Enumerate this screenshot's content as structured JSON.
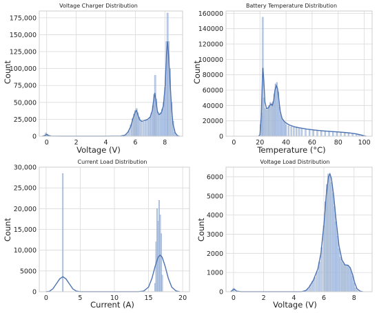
{
  "colors": {
    "bar": "#a8bfe0",
    "line": "#4c72b0"
  },
  "chart_data": [
    {
      "type": "histogram",
      "title": "Voltage Charger Distribution",
      "xlabel": "Voltage (V)",
      "ylabel": "Count",
      "xlim": [
        -0.5,
        9.2
      ],
      "ylim": [
        0,
        185000
      ],
      "xticks": [
        0,
        2,
        4,
        6,
        8
      ],
      "xtick_labels": [
        "0",
        "2",
        "4",
        "6",
        "8"
      ],
      "yticks": [
        0,
        25000,
        50000,
        75000,
        100000,
        125000,
        150000,
        175000
      ],
      "ytick_labels": [
        "0",
        "25,000",
        "50,000",
        "75,000",
        "100,000",
        "125,000",
        "150,000",
        "175,000"
      ],
      "bars": [
        [
          -0.05,
          5000
        ],
        [
          0.05,
          3000
        ],
        [
          0.15,
          1200
        ],
        [
          0.3,
          500
        ],
        [
          0.6,
          300
        ],
        [
          1.0,
          250
        ],
        [
          1.5,
          200
        ],
        [
          2.0,
          150
        ],
        [
          5.4,
          3000
        ],
        [
          5.55,
          8000
        ],
        [
          5.7,
          17000
        ],
        [
          5.82,
          26000
        ],
        [
          5.92,
          33000
        ],
        [
          6.0,
          38000
        ],
        [
          6.08,
          41000
        ],
        [
          6.16,
          35000
        ],
        [
          6.26,
          28000
        ],
        [
          6.4,
          22000
        ],
        [
          6.55,
          21000
        ],
        [
          6.7,
          23000
        ],
        [
          6.85,
          24000
        ],
        [
          6.98,
          28000
        ],
        [
          7.1,
          34000
        ],
        [
          7.2,
          45000
        ],
        [
          7.28,
          62000
        ],
        [
          7.34,
          90000
        ],
        [
          7.42,
          55000
        ],
        [
          7.52,
          36000
        ],
        [
          7.62,
          33000
        ],
        [
          7.72,
          35000
        ],
        [
          7.82,
          40000
        ],
        [
          7.92,
          50000
        ],
        [
          8.02,
          72000
        ],
        [
          8.12,
          140000
        ],
        [
          8.18,
          182000
        ],
        [
          8.25,
          140000
        ],
        [
          8.35,
          100000
        ],
        [
          8.45,
          50000
        ],
        [
          8.55,
          22000
        ],
        [
          8.65,
          6000
        ],
        [
          8.75,
          1500
        ]
      ],
      "bar_width": 0.1,
      "kde": [
        [
          -0.3,
          0
        ],
        [
          -0.1,
          1200
        ],
        [
          0.0,
          2800
        ],
        [
          0.1,
          1200
        ],
        [
          0.3,
          200
        ],
        [
          1.0,
          100
        ],
        [
          2.0,
          100
        ],
        [
          3.0,
          50
        ],
        [
          4.0,
          100
        ],
        [
          5.0,
          300
        ],
        [
          5.3,
          1500
        ],
        [
          5.5,
          6000
        ],
        [
          5.7,
          15000
        ],
        [
          5.85,
          27000
        ],
        [
          6.0,
          36000
        ],
        [
          6.08,
          38000
        ],
        [
          6.2,
          30000
        ],
        [
          6.3,
          24000
        ],
        [
          6.45,
          22000
        ],
        [
          6.6,
          23000
        ],
        [
          6.8,
          24500
        ],
        [
          7.0,
          28000
        ],
        [
          7.15,
          38000
        ],
        [
          7.25,
          55000
        ],
        [
          7.32,
          64000
        ],
        [
          7.4,
          52000
        ],
        [
          7.5,
          36000
        ],
        [
          7.6,
          32000
        ],
        [
          7.75,
          34000
        ],
        [
          7.9,
          45000
        ],
        [
          8.02,
          75000
        ],
        [
          8.1,
          118000
        ],
        [
          8.18,
          140000
        ],
        [
          8.25,
          120000
        ],
        [
          8.35,
          80000
        ],
        [
          8.45,
          42000
        ],
        [
          8.55,
          18000
        ],
        [
          8.7,
          5000
        ],
        [
          8.85,
          800
        ],
        [
          9.0,
          0
        ]
      ]
    },
    {
      "type": "histogram",
      "title": "Battery Temperature Distribution",
      "xlabel": "Temperature (°C)",
      "ylabel": "Count",
      "xlim": [
        -6,
        106
      ],
      "ylim": [
        0,
        163000
      ],
      "xticks": [
        0,
        20,
        40,
        60,
        80,
        100
      ],
      "xtick_labels": [
        "0",
        "20",
        "40",
        "60",
        "80",
        "100"
      ],
      "yticks": [
        0,
        20000,
        40000,
        60000,
        80000,
        100000,
        120000,
        140000,
        160000
      ],
      "ytick_labels": [
        "0",
        "20000",
        "40000",
        "60000",
        "80000",
        "100000",
        "120000",
        "140000",
        "160000"
      ],
      "bars": [
        [
          20.5,
          15000
        ],
        [
          21.5,
          30000
        ],
        [
          22.2,
          155000
        ],
        [
          23,
          50000
        ],
        [
          24,
          36000
        ],
        [
          25,
          34000
        ],
        [
          26,
          36000
        ],
        [
          27,
          40000
        ],
        [
          28,
          44000
        ],
        [
          29,
          42000
        ],
        [
          30,
          45000
        ],
        [
          31,
          55000
        ],
        [
          32,
          68000
        ],
        [
          33,
          70000
        ],
        [
          34,
          58000
        ],
        [
          35,
          38000
        ],
        [
          36,
          27000
        ],
        [
          37,
          22000
        ],
        [
          38,
          19000
        ],
        [
          39,
          17000
        ],
        [
          40,
          15000
        ],
        [
          42,
          13500
        ],
        [
          44,
          12500
        ],
        [
          46,
          11500
        ],
        [
          48,
          11000
        ],
        [
          50,
          10500
        ],
        [
          52,
          10000
        ],
        [
          55,
          9500
        ],
        [
          58,
          9000
        ],
        [
          61,
          8500
        ],
        [
          64,
          8000
        ],
        [
          67,
          7500
        ],
        [
          70,
          7000
        ],
        [
          73,
          6500
        ],
        [
          76,
          6000
        ],
        [
          79,
          5500
        ],
        [
          82,
          5000
        ],
        [
          85,
          4600
        ],
        [
          88,
          4000
        ],
        [
          91,
          3500
        ],
        [
          94,
          2800
        ],
        [
          96,
          2000
        ],
        [
          98,
          1000
        ]
      ],
      "bar_width": 1,
      "kde": [
        [
          19,
          0
        ],
        [
          20,
          2000
        ],
        [
          21,
          25000
        ],
        [
          21.8,
          70000
        ],
        [
          22.3,
          89000
        ],
        [
          23,
          72000
        ],
        [
          23.8,
          45000
        ],
        [
          25,
          36000
        ],
        [
          26.5,
          37000
        ],
        [
          27.5,
          40000
        ],
        [
          28.5,
          42000
        ],
        [
          29.5,
          40000
        ],
        [
          30.5,
          46000
        ],
        [
          31.5,
          60000
        ],
        [
          32.5,
          66000
        ],
        [
          33.5,
          62000
        ],
        [
          34.5,
          48000
        ],
        [
          35.5,
          33000
        ],
        [
          37,
          23000
        ],
        [
          39,
          18500
        ],
        [
          42,
          15000
        ],
        [
          46,
          12500
        ],
        [
          50,
          11000
        ],
        [
          56,
          9200
        ],
        [
          62,
          8000
        ],
        [
          68,
          7000
        ],
        [
          74,
          6200
        ],
        [
          80,
          5500
        ],
        [
          86,
          4700
        ],
        [
          90,
          4000
        ],
        [
          94,
          3000
        ],
        [
          97,
          1800
        ],
        [
          100,
          500
        ],
        [
          101.5,
          0
        ]
      ]
    },
    {
      "type": "histogram",
      "title": "Current Load Distribution",
      "xlabel": "Current (A)",
      "ylabel": "Count",
      "xlim": [
        -1,
        21
      ],
      "ylim": [
        0,
        30000
      ],
      "xticks": [
        0,
        5,
        10,
        15,
        20
      ],
      "xtick_labels": [
        "0",
        "5",
        "10",
        "15",
        "20"
      ],
      "yticks": [
        0,
        5000,
        10000,
        15000,
        20000,
        25000,
        30000
      ],
      "ytick_labels": [
        "0",
        "5000",
        "10,000",
        "15,000",
        "20,000",
        "25,000",
        "30,000"
      ],
      "bars": [
        [
          2.45,
          28500
        ],
        [
          15.95,
          2000
        ],
        [
          16.1,
          12000
        ],
        [
          16.25,
          20000
        ],
        [
          16.4,
          17000
        ],
        [
          16.55,
          22000
        ],
        [
          16.7,
          18500
        ],
        [
          16.85,
          14000
        ],
        [
          17.0,
          4000
        ]
      ],
      "bar_width": 0.15,
      "kde": [
        [
          0,
          0
        ],
        [
          0.5,
          100
        ],
        [
          1.0,
          700
        ],
        [
          1.5,
          1900
        ],
        [
          2.0,
          3100
        ],
        [
          2.45,
          3600
        ],
        [
          2.9,
          3100
        ],
        [
          3.4,
          1900
        ],
        [
          3.9,
          700
        ],
        [
          4.4,
          150
        ],
        [
          5.0,
          0
        ],
        [
          13.5,
          0
        ],
        [
          14.3,
          150
        ],
        [
          15.0,
          1100
        ],
        [
          15.5,
          3200
        ],
        [
          16.0,
          6300
        ],
        [
          16.4,
          8300
        ],
        [
          16.7,
          8800
        ],
        [
          17.0,
          8300
        ],
        [
          17.4,
          6300
        ],
        [
          17.9,
          3200
        ],
        [
          18.4,
          1100
        ],
        [
          19.0,
          200
        ],
        [
          19.6,
          0
        ]
      ]
    },
    {
      "type": "histogram",
      "title": "Voltage Load Distribution",
      "xlabel": "Voltage (V)",
      "ylabel": "Count",
      "xlim": [
        -0.5,
        9.2
      ],
      "ylim": [
        0,
        6500
      ],
      "xticks": [
        0,
        2,
        4,
        6,
        8
      ],
      "xtick_labels": [
        "0",
        "2",
        "4",
        "6",
        "8"
      ],
      "yticks": [
        0,
        1000,
        2000,
        3000,
        4000,
        5000,
        6000
      ],
      "ytick_labels": [
        "0",
        "1000",
        "2000",
        "3000",
        "4000",
        "5000",
        "6000"
      ],
      "bars": [
        [
          0.0,
          180
        ],
        [
          4.8,
          50
        ],
        [
          4.95,
          180
        ],
        [
          5.1,
          350
        ],
        [
          5.25,
          550
        ],
        [
          5.4,
          750
        ],
        [
          5.55,
          1050
        ],
        [
          5.7,
          1550
        ],
        [
          5.85,
          2300
        ],
        [
          6.0,
          3450
        ],
        [
          6.1,
          4700
        ],
        [
          6.2,
          5600
        ],
        [
          6.3,
          6150
        ],
        [
          6.4,
          6050
        ],
        [
          6.5,
          5700
        ],
        [
          6.6,
          5150
        ],
        [
          6.7,
          4450
        ],
        [
          6.8,
          3650
        ],
        [
          6.9,
          2900
        ],
        [
          7.0,
          2250
        ],
        [
          7.1,
          1800
        ],
        [
          7.2,
          1550
        ],
        [
          7.3,
          1450
        ],
        [
          7.4,
          1400
        ],
        [
          7.5,
          1400
        ],
        [
          7.6,
          1350
        ],
        [
          7.7,
          1250
        ],
        [
          7.8,
          1050
        ],
        [
          7.9,
          800
        ],
        [
          8.0,
          450
        ],
        [
          8.1,
          200
        ],
        [
          8.2,
          70
        ]
      ],
      "bar_width": 0.1,
      "kde": [
        [
          -0.2,
          0
        ],
        [
          -0.05,
          90
        ],
        [
          0.05,
          130
        ],
        [
          0.2,
          30
        ],
        [
          0.5,
          0
        ],
        [
          4.5,
          0
        ],
        [
          4.8,
          60
        ],
        [
          5.0,
          220
        ],
        [
          5.3,
          600
        ],
        [
          5.6,
          1200
        ],
        [
          5.8,
          2000
        ],
        [
          6.0,
          3500
        ],
        [
          6.15,
          5000
        ],
        [
          6.3,
          6000
        ],
        [
          6.4,
          6150
        ],
        [
          6.5,
          5900
        ],
        [
          6.65,
          5000
        ],
        [
          6.8,
          3800
        ],
        [
          7.0,
          2400
        ],
        [
          7.2,
          1650
        ],
        [
          7.4,
          1400
        ],
        [
          7.6,
          1380
        ],
        [
          7.75,
          1250
        ],
        [
          7.9,
          900
        ],
        [
          8.05,
          450
        ],
        [
          8.2,
          150
        ],
        [
          8.4,
          30
        ],
        [
          8.6,
          0
        ]
      ]
    }
  ]
}
